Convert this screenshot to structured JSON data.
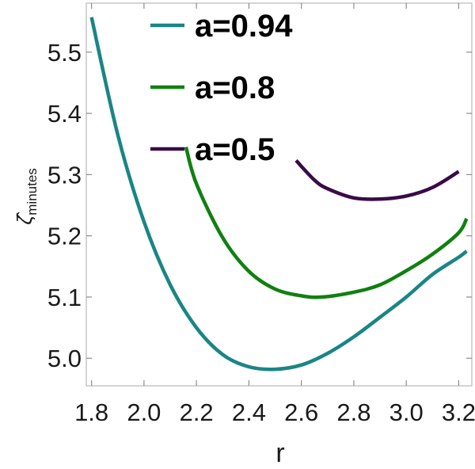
{
  "chart_data": {
    "type": "line",
    "title": "",
    "xlabel": "r",
    "ylabel": {
      "main": "ζ̂",
      "subscript": "minutes"
    },
    "xlim": [
      1.78,
      3.25
    ],
    "ylim": [
      4.955,
      5.58
    ],
    "xticks": [
      1.8,
      2.0,
      2.2,
      2.4,
      2.6,
      2.8,
      3.0,
      3.2
    ],
    "xtick_labels": [
      "1.8",
      "2.0",
      "2.2",
      "2.4",
      "2.6",
      "2.8",
      "3.0",
      "3.2"
    ],
    "yticks": [
      5.0,
      5.1,
      5.2,
      5.3,
      5.4,
      5.5
    ],
    "ytick_labels": [
      "5.0",
      "5.1",
      "5.2",
      "5.3",
      "5.4",
      "5.5"
    ],
    "grid": false,
    "legend_position": "top",
    "series": [
      {
        "name": "a=0.94",
        "color": "#1a8585",
        "x": [
          1.8,
          1.9,
          2.0,
          2.1,
          2.2,
          2.3,
          2.4,
          2.5,
          2.6,
          2.7,
          2.8,
          2.9,
          3.0,
          3.1,
          3.2,
          3.23
        ],
        "y": [
          5.557,
          5.365,
          5.223,
          5.12,
          5.05,
          5.006,
          4.986,
          4.982,
          4.989,
          5.008,
          5.035,
          5.067,
          5.1,
          5.137,
          5.165,
          5.175
        ]
      },
      {
        "name": "a=0.8",
        "color": "#108010",
        "x": [
          2.16,
          2.2,
          2.3,
          2.4,
          2.5,
          2.6,
          2.68,
          2.8,
          2.9,
          3.0,
          3.1,
          3.2,
          3.23
        ],
        "y": [
          5.345,
          5.285,
          5.197,
          5.142,
          5.113,
          5.102,
          5.1,
          5.108,
          5.12,
          5.143,
          5.17,
          5.205,
          5.228
        ]
      },
      {
        "name": "a=0.5",
        "color": "#3a0a48",
        "x": [
          2.58,
          2.65,
          2.7,
          2.8,
          2.9,
          3.0,
          3.1,
          3.2
        ],
        "y": [
          5.323,
          5.291,
          5.277,
          5.262,
          5.26,
          5.265,
          5.279,
          5.305
        ]
      }
    ]
  }
}
